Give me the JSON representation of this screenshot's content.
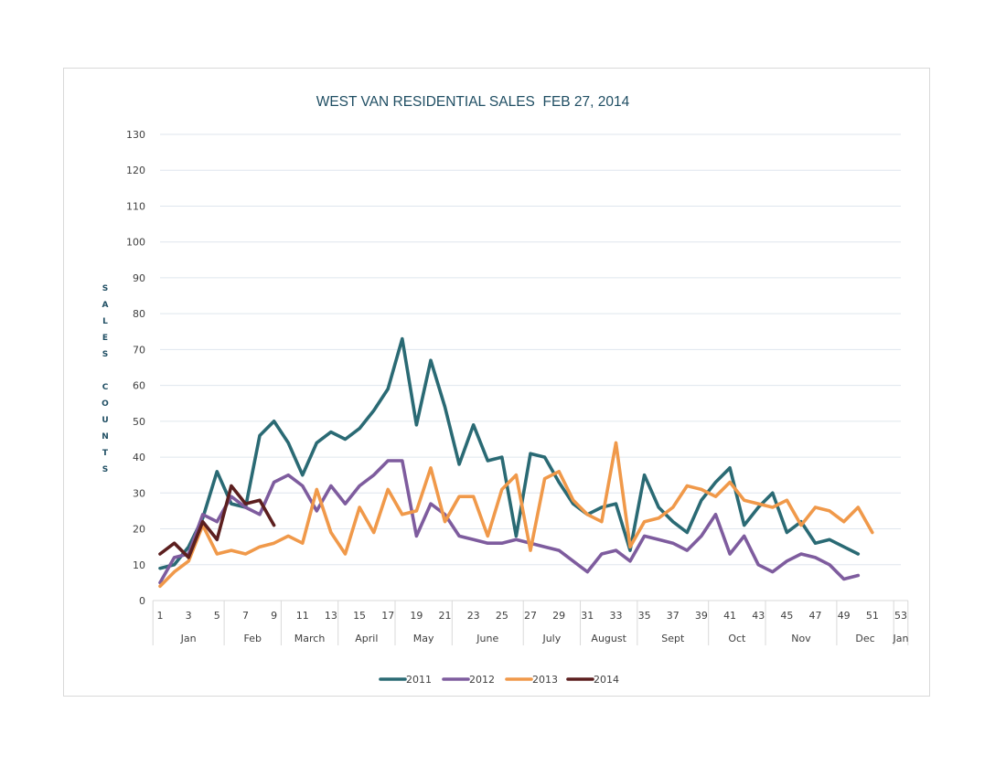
{
  "chart_data": {
    "type": "line",
    "title": "WEST VAN RESIDENTIAL SALES  FEB 27, 2014",
    "xlabel": "",
    "ylabel_words": [
      "SALES",
      "COUNTS"
    ],
    "ylim": [
      0,
      130
    ],
    "yticks": [
      0,
      10,
      20,
      30,
      40,
      50,
      60,
      70,
      80,
      90,
      100,
      110,
      120,
      130
    ],
    "xlim": [
      1,
      53
    ],
    "xticks": [
      1,
      3,
      5,
      7,
      9,
      11,
      13,
      15,
      17,
      19,
      21,
      23,
      25,
      27,
      29,
      31,
      33,
      35,
      37,
      39,
      41,
      43,
      45,
      47,
      49,
      51,
      53
    ],
    "months": [
      {
        "label": "Jan",
        "start": 1,
        "end": 5
      },
      {
        "label": "Feb",
        "start": 6,
        "end": 9
      },
      {
        "label": "March",
        "start": 10,
        "end": 13
      },
      {
        "label": "April",
        "start": 14,
        "end": 17
      },
      {
        "label": "May",
        "start": 18,
        "end": 21
      },
      {
        "label": "June",
        "start": 22,
        "end": 26
      },
      {
        "label": "July",
        "start": 27,
        "end": 30
      },
      {
        "label": "August",
        "start": 31,
        "end": 34
      },
      {
        "label": "Sept",
        "start": 35,
        "end": 39
      },
      {
        "label": "Oct",
        "start": 40,
        "end": 43
      },
      {
        "label": "Nov",
        "start": 44,
        "end": 48
      },
      {
        "label": "Dec",
        "start": 49,
        "end": 52
      },
      {
        "label": "Jan",
        "start": 53,
        "end": 53
      }
    ],
    "grid": true,
    "legend_position": "bottom",
    "series": [
      {
        "name": "2011",
        "color": "#2a6a74",
        "values": [
          9,
          10,
          15,
          23,
          36,
          27,
          26,
          46,
          50,
          44,
          35,
          44,
          47,
          45,
          48,
          53,
          59,
          73,
          49,
          67,
          54,
          38,
          49,
          39,
          40,
          18,
          41,
          40,
          33,
          27,
          24,
          26,
          27,
          14,
          35,
          26,
          22,
          19,
          28,
          33,
          37,
          21,
          26,
          30,
          19,
          22,
          16,
          17,
          15,
          13
        ]
      },
      {
        "name": "2012",
        "color": "#7e5c9e",
        "values": [
          5,
          12,
          13,
          24,
          22,
          29,
          26,
          24,
          33,
          35,
          32,
          25,
          32,
          27,
          32,
          35,
          39,
          39,
          18,
          27,
          24,
          18,
          17,
          16,
          16,
          17,
          16,
          15,
          14,
          11,
          8,
          13,
          14,
          11,
          18,
          17,
          16,
          14,
          18,
          24,
          13,
          18,
          10,
          8,
          11,
          13,
          12,
          10,
          6,
          7
        ]
      },
      {
        "name": "2013",
        "color": "#f0994a",
        "values": [
          4,
          8,
          11,
          21,
          13,
          14,
          13,
          15,
          16,
          18,
          16,
          31,
          19,
          13,
          26,
          19,
          31,
          24,
          25,
          37,
          22,
          29,
          29,
          18,
          31,
          35,
          14,
          34,
          36,
          28,
          24,
          22,
          44,
          15,
          22,
          23,
          26,
          32,
          31,
          29,
          33,
          28,
          27,
          26,
          28,
          21,
          26,
          25,
          22,
          26,
          19
        ]
      },
      {
        "name": "2014",
        "color": "#5c1f1f",
        "values": [
          13,
          16,
          12,
          22,
          17,
          32,
          27,
          28,
          21
        ]
      }
    ]
  }
}
